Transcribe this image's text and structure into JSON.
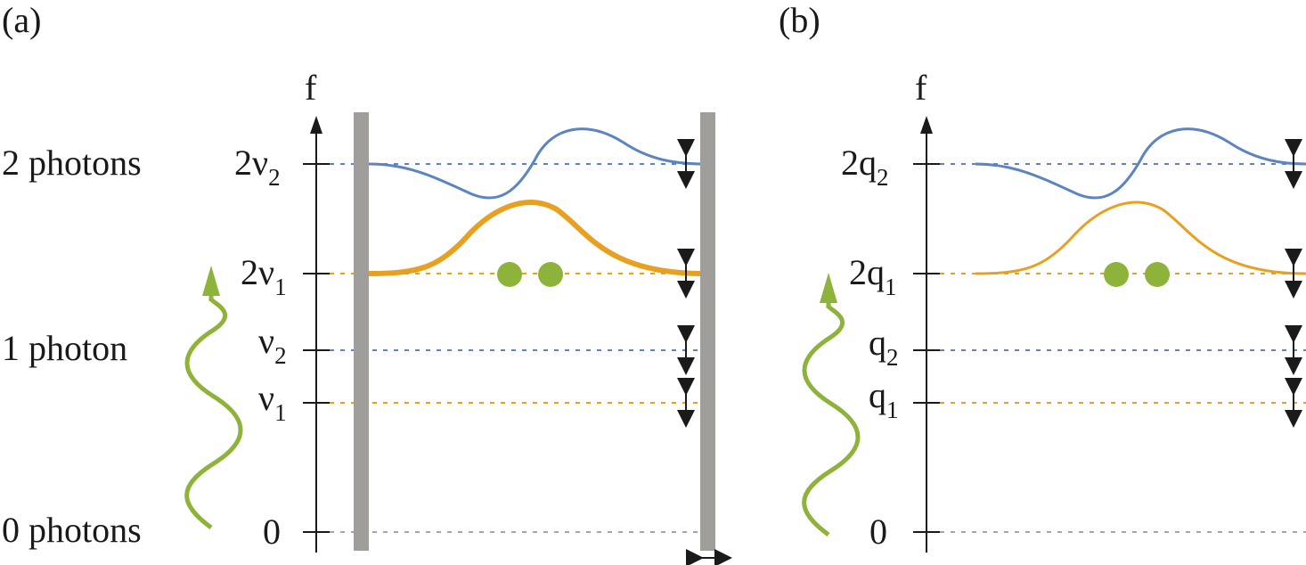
{
  "panels": {
    "a": {
      "label": "(a)",
      "axis_label": "f",
      "ticks": {
        "two_v2": {
          "main": "2ν",
          "sub": "2"
        },
        "two_v1": {
          "main": "2ν",
          "sub": "1"
        },
        "v2": {
          "main": "ν",
          "sub": "2"
        },
        "v1": {
          "main": "ν",
          "sub": "1"
        },
        "zero": {
          "main": "0"
        }
      },
      "photon_labels": {
        "two": "2 photons",
        "one": "1 photon",
        "zero": "0 photons"
      }
    },
    "b": {
      "label": "(b)",
      "axis_label": "f",
      "ticks": {
        "two_q2": {
          "main": "2q",
          "sub": "2"
        },
        "two_q1": {
          "main": "2q",
          "sub": "1"
        },
        "q2": {
          "main": "q",
          "sub": "2"
        },
        "q1": {
          "main": "q",
          "sub": "1"
        },
        "zero": {
          "main": "0"
        }
      }
    }
  },
  "colors": {
    "blue": "#5b84c1",
    "orange": "#e8a020",
    "green": "#8db33a",
    "gray_wall": "#a09e9b",
    "gray_dots": "#a6a6a6",
    "black": "#1a1a1a"
  }
}
